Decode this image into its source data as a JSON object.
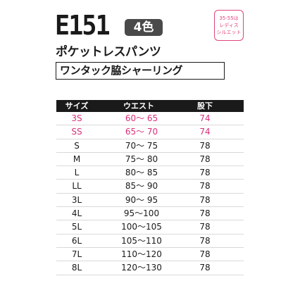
{
  "header": {
    "code": "E151",
    "colors": "4色",
    "ladies_badge": [
      "35-55は",
      "レディス",
      "シルエット"
    ],
    "product_name": "ポケットレスパンツ",
    "feature": "ワンタック脇シャーリング"
  },
  "table": {
    "headers": {
      "size": "サイズ",
      "waist": "ウエスト",
      "inseam": "股下"
    },
    "rows": [
      {
        "size": "3S",
        "waist": "60～ 65",
        "inseam": "74"
      },
      {
        "size": "SS",
        "waist": "65～ 70",
        "inseam": "74"
      },
      {
        "size": "S",
        "waist": "70～ 75",
        "inseam": "78"
      },
      {
        "size": "M",
        "waist": "75～ 80",
        "inseam": "78"
      },
      {
        "size": "L",
        "waist": "80～ 85",
        "inseam": "78"
      },
      {
        "size": "LL",
        "waist": "85～ 90",
        "inseam": "78"
      },
      {
        "size": "3L",
        "waist": "90～ 95",
        "inseam": "78"
      },
      {
        "size": "4L",
        "waist": "95～100",
        "inseam": "78"
      },
      {
        "size": "5L",
        "waist": "100～105",
        "inseam": "78"
      },
      {
        "size": "6L",
        "waist": "105～110",
        "inseam": "78"
      },
      {
        "size": "7L",
        "waist": "110～120",
        "inseam": "78"
      },
      {
        "size": "8L",
        "waist": "120～130",
        "inseam": "78"
      }
    ]
  },
  "colors": {
    "text": "#1a1a1a",
    "ladies_accent": "#d9307a",
    "badge_bg": "#4a4a4a"
  }
}
